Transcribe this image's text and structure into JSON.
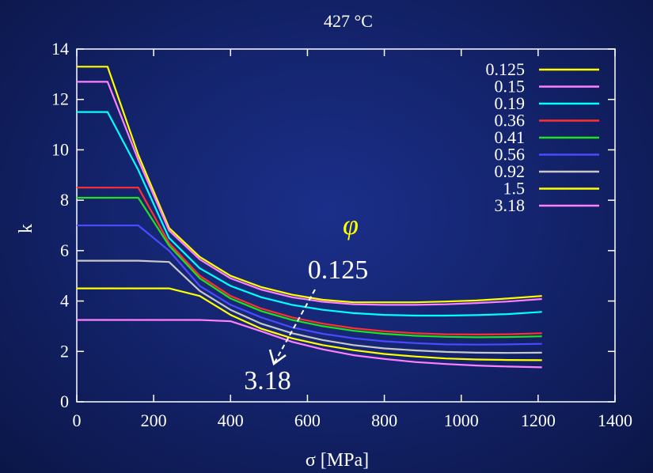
{
  "chart_data": {
    "type": "line",
    "title": "427 °C",
    "xlabel": "σ [MPa]",
    "ylabel": "k",
    "xlim": [
      0,
      1400
    ],
    "ylim": [
      0,
      14
    ],
    "xticks": [
      0,
      200,
      400,
      600,
      800,
      1000,
      1200,
      1400
    ],
    "yticks": [
      0,
      2,
      4,
      6,
      8,
      10,
      12,
      14
    ],
    "grid": false,
    "legend_position": "top-right",
    "x": [
      0,
      80,
      160,
      240,
      320,
      400,
      480,
      560,
      640,
      720,
      800,
      880,
      960,
      1040,
      1120,
      1210
    ],
    "series": [
      {
        "name": "0.125",
        "color": "#ffff00",
        "values": [
          13.3,
          13.3,
          9.8,
          6.9,
          5.75,
          5.0,
          4.55,
          4.25,
          4.05,
          3.95,
          3.95,
          3.95,
          3.98,
          4.02,
          4.1,
          4.2
        ]
      },
      {
        "name": "0.15",
        "color": "#ff80ff",
        "values": [
          12.7,
          12.7,
          9.6,
          6.8,
          5.65,
          4.9,
          4.45,
          4.15,
          3.97,
          3.87,
          3.85,
          3.85,
          3.87,
          3.92,
          3.98,
          4.08
        ]
      },
      {
        "name": "0.19",
        "color": "#00ffff",
        "values": [
          11.5,
          11.5,
          9.2,
          6.5,
          5.3,
          4.6,
          4.15,
          3.85,
          3.65,
          3.52,
          3.45,
          3.42,
          3.42,
          3.44,
          3.48,
          3.57
        ]
      },
      {
        "name": "0.36",
        "color": "#ff3030",
        "values": [
          8.5,
          8.5,
          8.5,
          6.3,
          5.0,
          4.2,
          3.7,
          3.35,
          3.1,
          2.92,
          2.8,
          2.72,
          2.68,
          2.67,
          2.68,
          2.72
        ]
      },
      {
        "name": "0.41",
        "color": "#20e020",
        "values": [
          8.1,
          8.1,
          8.1,
          6.2,
          4.9,
          4.1,
          3.6,
          3.25,
          3.0,
          2.82,
          2.7,
          2.62,
          2.58,
          2.56,
          2.57,
          2.6
        ]
      },
      {
        "name": "0.56",
        "color": "#4a4aff",
        "values": [
          7.0,
          7.0,
          7.0,
          6.0,
          4.6,
          3.85,
          3.35,
          2.95,
          2.7,
          2.52,
          2.4,
          2.33,
          2.28,
          2.27,
          2.28,
          2.3
        ]
      },
      {
        "name": "0.92",
        "color": "#c8c8c8",
        "values": [
          5.6,
          5.6,
          5.6,
          5.55,
          4.4,
          3.65,
          3.1,
          2.72,
          2.45,
          2.25,
          2.12,
          2.04,
          1.98,
          1.95,
          1.94,
          1.95
        ]
      },
      {
        "name": "1.5",
        "color": "#ffff00",
        "values": [
          4.5,
          4.5,
          4.5,
          4.5,
          4.2,
          3.45,
          2.9,
          2.52,
          2.25,
          2.05,
          1.9,
          1.8,
          1.72,
          1.68,
          1.66,
          1.65
        ]
      },
      {
        "name": "3.18",
        "color": "#ff80ff",
        "values": [
          3.25,
          3.25,
          3.25,
          3.25,
          3.25,
          3.2,
          2.8,
          2.38,
          2.08,
          1.85,
          1.7,
          1.58,
          1.5,
          1.44,
          1.4,
          1.37
        ]
      }
    ],
    "annotations": {
      "symbol": "φ",
      "from_label": "0.125",
      "to_label": "3.18"
    }
  }
}
